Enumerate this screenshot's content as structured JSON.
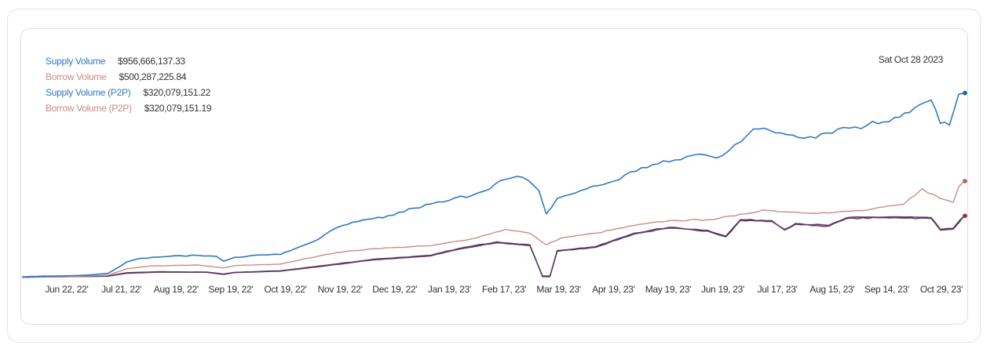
{
  "legend": {
    "items": [
      {
        "label": "Supply Volume",
        "value": "$956,666,137.33",
        "color": "#2f78c4"
      },
      {
        "label": "Borrow Volume",
        "value": "$500,287,225.84",
        "color": "#c98b87"
      },
      {
        "label": "Supply Volume (P2P)",
        "value": "$320,079,151.22",
        "color": "#2f78c4"
      },
      {
        "label": "Borrow Volume (P2P)",
        "value": "$320,079,151.19",
        "color": "#c98b87"
      }
    ]
  },
  "date_readout": "Sat Oct 28 2023",
  "chart_data": {
    "type": "line",
    "x_ticks": [
      "Jun 22, 22'",
      "Jul 21, 22'",
      "Aug 19, 22'",
      "Sep 19, 22'",
      "Oct 19, 22'",
      "Nov 19, 22'",
      "Dec 19, 22'",
      "Jan 19, 23'",
      "Feb 17, 23'",
      "Mar 19, 23'",
      "Apr 19, 23'",
      "May 19, 23'",
      "Jun 19, 23'",
      "Jul 17, 23'",
      "Aug 15, 23'",
      "Sep 14, 23'",
      "Oct 29, 23'"
    ],
    "x_start": "2022-06-01",
    "x_end": "2023-10-28",
    "ylim": [
      0,
      1000000000
    ],
    "grid": false,
    "series": [
      {
        "name": "Supply Volume",
        "color": "#2f78c4",
        "points": [
          [
            "2022-06-01",
            4000000
          ],
          [
            "2022-06-15",
            8000000
          ],
          [
            "2022-06-30",
            10000000
          ],
          [
            "2022-07-10",
            15000000
          ],
          [
            "2022-07-18",
            22000000
          ],
          [
            "2022-07-28",
            80000000
          ],
          [
            "2022-08-05",
            100000000
          ],
          [
            "2022-08-20",
            110000000
          ],
          [
            "2022-09-05",
            115000000
          ],
          [
            "2022-09-15",
            110000000
          ],
          [
            "2022-09-19",
            85000000
          ],
          [
            "2022-09-25",
            105000000
          ],
          [
            "2022-10-10",
            118000000
          ],
          [
            "2022-10-20",
            120000000
          ],
          [
            "2022-10-28",
            150000000
          ],
          [
            "2022-11-10",
            200000000
          ],
          [
            "2022-11-20",
            260000000
          ],
          [
            "2022-12-01",
            290000000
          ],
          [
            "2022-12-15",
            310000000
          ],
          [
            "2023-01-01",
            360000000
          ],
          [
            "2023-01-20",
            400000000
          ],
          [
            "2023-02-05",
            440000000
          ],
          [
            "2023-02-20",
            510000000
          ],
          [
            "2023-03-01",
            520000000
          ],
          [
            "2023-03-10",
            450000000
          ],
          [
            "2023-03-14",
            330000000
          ],
          [
            "2023-03-20",
            410000000
          ],
          [
            "2023-04-05",
            460000000
          ],
          [
            "2023-04-20",
            500000000
          ],
          [
            "2023-05-05",
            570000000
          ],
          [
            "2023-05-20",
            600000000
          ],
          [
            "2023-06-05",
            640000000
          ],
          [
            "2023-06-15",
            620000000
          ],
          [
            "2023-06-25",
            690000000
          ],
          [
            "2023-07-05",
            770000000
          ],
          [
            "2023-07-20",
            750000000
          ],
          [
            "2023-08-05",
            730000000
          ],
          [
            "2023-08-20",
            770000000
          ],
          [
            "2023-09-05",
            790000000
          ],
          [
            "2023-09-20",
            830000000
          ],
          [
            "2023-10-01",
            880000000
          ],
          [
            "2023-10-10",
            920000000
          ],
          [
            "2023-10-15",
            800000000
          ],
          [
            "2023-10-20",
            790000000
          ],
          [
            "2023-10-25",
            950000000
          ],
          [
            "2023-10-28",
            957000000
          ]
        ]
      },
      {
        "name": "Borrow Volume",
        "color": "#c98b87",
        "points": [
          [
            "2022-06-01",
            3000000
          ],
          [
            "2022-06-30",
            6000000
          ],
          [
            "2022-07-18",
            12000000
          ],
          [
            "2022-07-28",
            45000000
          ],
          [
            "2022-08-10",
            60000000
          ],
          [
            "2022-09-05",
            65000000
          ],
          [
            "2022-09-19",
            50000000
          ],
          [
            "2022-09-25",
            62000000
          ],
          [
            "2022-10-20",
            70000000
          ],
          [
            "2022-11-01",
            95000000
          ],
          [
            "2022-11-20",
            130000000
          ],
          [
            "2022-12-10",
            150000000
          ],
          [
            "2023-01-10",
            165000000
          ],
          [
            "2023-02-01",
            200000000
          ],
          [
            "2023-02-20",
            250000000
          ],
          [
            "2023-03-05",
            230000000
          ],
          [
            "2023-03-14",
            170000000
          ],
          [
            "2023-03-22",
            205000000
          ],
          [
            "2023-04-10",
            230000000
          ],
          [
            "2023-05-01",
            270000000
          ],
          [
            "2023-05-20",
            295000000
          ],
          [
            "2023-06-10",
            300000000
          ],
          [
            "2023-06-25",
            320000000
          ],
          [
            "2023-07-10",
            350000000
          ],
          [
            "2023-07-25",
            340000000
          ],
          [
            "2023-08-15",
            335000000
          ],
          [
            "2023-09-05",
            350000000
          ],
          [
            "2023-09-25",
            380000000
          ],
          [
            "2023-10-05",
            460000000
          ],
          [
            "2023-10-15",
            410000000
          ],
          [
            "2023-10-22",
            390000000
          ],
          [
            "2023-10-25",
            470000000
          ],
          [
            "2023-10-28",
            500000000
          ]
        ]
      },
      {
        "name": "Supply Volume (P2P)",
        "color": "#2f78c4",
        "points": [
          [
            "2022-06-01",
            2000000
          ],
          [
            "2022-07-18",
            8000000
          ],
          [
            "2022-07-28",
            25000000
          ],
          [
            "2022-08-15",
            30000000
          ],
          [
            "2022-09-10",
            28000000
          ],
          [
            "2022-09-19",
            18000000
          ],
          [
            "2022-09-25",
            27000000
          ],
          [
            "2022-10-20",
            35000000
          ],
          [
            "2022-11-15",
            65000000
          ],
          [
            "2022-12-10",
            95000000
          ],
          [
            "2023-01-10",
            115000000
          ],
          [
            "2023-01-25",
            150000000
          ],
          [
            "2023-02-15",
            185000000
          ],
          [
            "2023-03-05",
            170000000
          ],
          [
            "2023-03-12",
            5000000
          ],
          [
            "2023-03-16",
            5000000
          ],
          [
            "2023-03-20",
            140000000
          ],
          [
            "2023-04-10",
            160000000
          ],
          [
            "2023-05-01",
            230000000
          ],
          [
            "2023-05-20",
            260000000
          ],
          [
            "2023-06-10",
            245000000
          ],
          [
            "2023-06-20",
            215000000
          ],
          [
            "2023-06-28",
            300000000
          ],
          [
            "2023-07-15",
            295000000
          ],
          [
            "2023-07-22",
            250000000
          ],
          [
            "2023-07-28",
            280000000
          ],
          [
            "2023-08-15",
            270000000
          ],
          [
            "2023-08-25",
            310000000
          ],
          [
            "2023-09-20",
            315000000
          ],
          [
            "2023-10-10",
            310000000
          ],
          [
            "2023-10-15",
            250000000
          ],
          [
            "2023-10-22",
            255000000
          ],
          [
            "2023-10-28",
            320000000
          ]
        ]
      },
      {
        "name": "Borrow Volume (P2P)",
        "color": "#c98b87",
        "points": [
          [
            "2022-06-01",
            2000000
          ],
          [
            "2022-07-18",
            7000000
          ],
          [
            "2022-07-28",
            22000000
          ],
          [
            "2022-08-15",
            28000000
          ],
          [
            "2022-09-10",
            27000000
          ],
          [
            "2022-09-19",
            16000000
          ],
          [
            "2022-09-25",
            26000000
          ],
          [
            "2022-10-20",
            33000000
          ],
          [
            "2022-11-15",
            62000000
          ],
          [
            "2022-12-10",
            92000000
          ],
          [
            "2023-01-10",
            112000000
          ],
          [
            "2023-01-25",
            146000000
          ],
          [
            "2023-02-15",
            180000000
          ],
          [
            "2023-03-05",
            166000000
          ],
          [
            "2023-03-12",
            8000000
          ],
          [
            "2023-03-16",
            8000000
          ],
          [
            "2023-03-20",
            136000000
          ],
          [
            "2023-04-10",
            157000000
          ],
          [
            "2023-05-01",
            226000000
          ],
          [
            "2023-05-20",
            256000000
          ],
          [
            "2023-06-10",
            241000000
          ],
          [
            "2023-06-20",
            211000000
          ],
          [
            "2023-06-28",
            296000000
          ],
          [
            "2023-07-15",
            291000000
          ],
          [
            "2023-07-22",
            246000000
          ],
          [
            "2023-07-28",
            276000000
          ],
          [
            "2023-08-15",
            266000000
          ],
          [
            "2023-08-25",
            306000000
          ],
          [
            "2023-09-20",
            311000000
          ],
          [
            "2023-10-10",
            306000000
          ],
          [
            "2023-10-15",
            246000000
          ],
          [
            "2023-10-22",
            251000000
          ],
          [
            "2023-10-28",
            320000000
          ]
        ]
      }
    ]
  }
}
